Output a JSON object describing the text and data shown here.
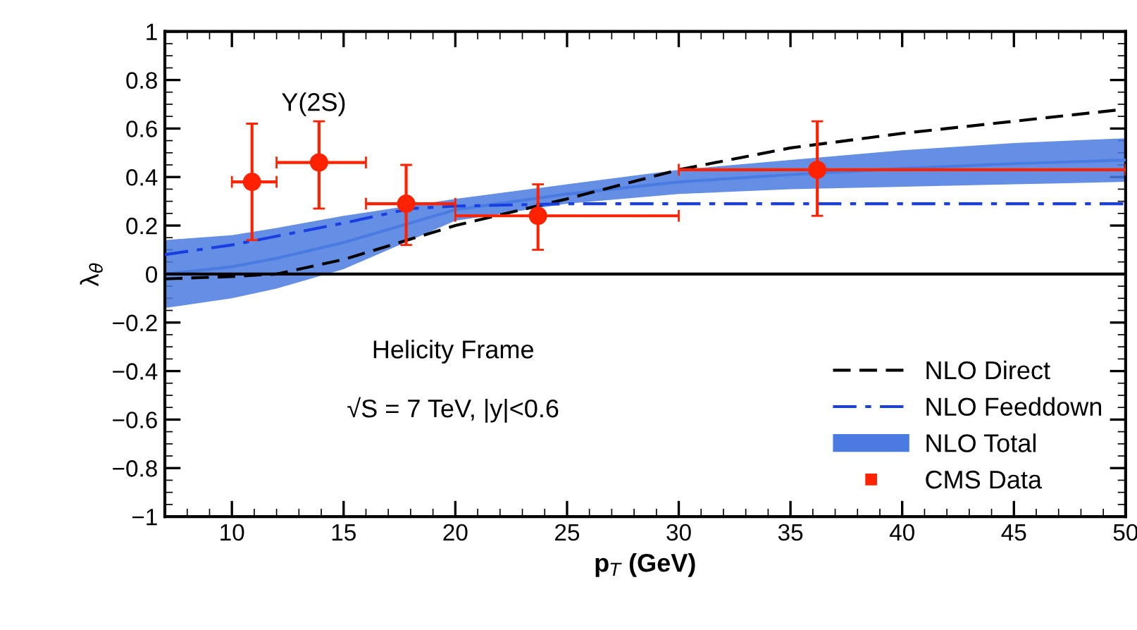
{
  "chart_data": {
    "type": "line",
    "xlabel": "p$_{T}$ (GeV)",
    "ylabel": "λ$_{θ}$",
    "xlim": [
      7,
      50
    ],
    "xticks": [
      10,
      15,
      20,
      25,
      30,
      35,
      40,
      45,
      50
    ],
    "ylim": [
      -1,
      1
    ],
    "yticks": [
      -1,
      -0.8,
      -0.6,
      -0.4,
      -0.2,
      0,
      0.2,
      0.4,
      0.6,
      0.8,
      1
    ],
    "grid": false,
    "legend": "bottom right",
    "ref_lines": [
      {
        "axis": "y",
        "value": 0,
        "color": "#000000",
        "line_style": "solid"
      }
    ],
    "annotations": [
      "Y(2S)",
      "Helicity Frame",
      "√S = 7 TeV, |y|<0.6"
    ],
    "series": [
      {
        "name": "NLO Total",
        "color": "#4a7be0",
        "line_style": "solid",
        "marker": "none",
        "x": [
          7,
          10,
          12,
          15,
          20,
          25,
          30,
          35,
          40,
          45,
          50
        ],
        "values": [
          0.0,
          0.03,
          0.065,
          0.13,
          0.265,
          0.33,
          0.38,
          0.41,
          0.435,
          0.455,
          0.47
        ],
        "lower": [
          -0.14,
          -0.1,
          -0.06,
          0.02,
          0.22,
          0.29,
          0.33,
          0.35,
          0.36,
          0.37,
          0.38
        ],
        "upper": [
          0.14,
          0.16,
          0.19,
          0.24,
          0.31,
          0.37,
          0.43,
          0.47,
          0.51,
          0.54,
          0.56
        ]
      },
      {
        "name": "NLO Direct",
        "color": "#000000",
        "line_style": "dashed",
        "marker": "none",
        "x": [
          7,
          10,
          12,
          15,
          20,
          25,
          30,
          35,
          40,
          45,
          50
        ],
        "values": [
          -0.02,
          -0.01,
          0.0,
          0.06,
          0.2,
          0.31,
          0.43,
          0.52,
          0.58,
          0.63,
          0.68
        ]
      },
      {
        "name": "NLO Feeddown",
        "color": "#1a3fe0",
        "line_style": "dashdot",
        "marker": "none",
        "x": [
          7,
          10,
          15,
          18,
          20,
          25,
          30,
          40,
          50
        ],
        "values": [
          0.08,
          0.12,
          0.21,
          0.27,
          0.28,
          0.29,
          0.29,
          0.29,
          0.29
        ]
      },
      {
        "name": "CMS Data",
        "type": "scatter",
        "color": "#ff2200",
        "marker": "circle",
        "x": [
          10.9,
          13.9,
          17.8,
          23.7,
          36.2
        ],
        "values": [
          0.38,
          0.46,
          0.29,
          0.24,
          0.43
        ],
        "errors": [
          [
            0.14,
            0.62
          ],
          [
            0.27,
            0.63
          ],
          [
            0.12,
            0.45
          ],
          [
            0.1,
            0.37
          ],
          [
            0.24,
            0.63
          ]
        ],
        "xerrors": [
          [
            10,
            12
          ],
          [
            12,
            16
          ],
          [
            16,
            20
          ],
          [
            20,
            30
          ],
          [
            30,
            50
          ]
        ]
      }
    ]
  }
}
